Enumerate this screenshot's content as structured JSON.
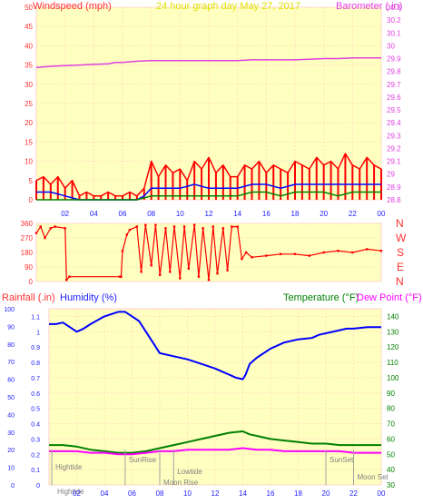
{
  "header": {
    "left_label": "Windspeed (mph)",
    "title": "24 hour graph day   May 27, 2017",
    "right_label": "Barometer (.in)"
  },
  "mid_right_labels": [
    "N",
    "W",
    "S",
    "E",
    "N"
  ],
  "bottom_header": {
    "rainfall_label": "Rainfall (.in)",
    "humidity_label": "Humidity (%)",
    "temperature_label": "Temperature (°F)",
    "dewpoint_label": "Dew Point (°F)"
  },
  "colors": {
    "plot_bg": "#ffffc0",
    "windspeed": "#ff0000",
    "windavg": "#0000ff",
    "windlow": "#008000",
    "barometer": "#e040e0",
    "humidity": "#0000ff",
    "temperature": "#008000",
    "dewpoint": "#ff00ff",
    "axis_red": "#ff3030",
    "axis_blue": "#2020ff",
    "axis_green": "#008000",
    "title": "#e0e000",
    "event": "#808080"
  },
  "chart_data": [
    {
      "type": "line",
      "name": "windspeed-barometer",
      "x_ticks": [
        "02",
        "04",
        "06",
        "08",
        "10",
        "12",
        "14",
        "16",
        "18",
        "20",
        "22",
        "00"
      ],
      "x_range": [
        0,
        24
      ],
      "y_left_ticks": [
        "0",
        "5",
        "10",
        "15",
        "20",
        "25",
        "30",
        "35",
        "40",
        "45",
        "50"
      ],
      "y_left_range": [
        0,
        50
      ],
      "y_right_ticks": [
        "28.8",
        "28.9",
        "29",
        "29.1",
        "29.2",
        "29.3",
        "29.4",
        "29.5",
        "29.6",
        "29.7",
        "29.8",
        "29.9",
        "30",
        "30.1",
        "30.2",
        "30.3"
      ],
      "y_right_range": [
        28.8,
        30.3
      ],
      "grid": true,
      "series": [
        {
          "name": "Windspeed",
          "axis": "left",
          "x": [
            0,
            0.5,
            1,
            1.5,
            2,
            2.5,
            3,
            3.5,
            4,
            4.5,
            5,
            5.5,
            6,
            6.5,
            7,
            7.5,
            8,
            8.5,
            9,
            9.5,
            10,
            10.5,
            11,
            11.5,
            12,
            12.5,
            13,
            13.5,
            14,
            14.5,
            15,
            15.5,
            16,
            16.5,
            17,
            17.5,
            18,
            18.5,
            19,
            19.5,
            20,
            20.5,
            21,
            21.5,
            22,
            22.5,
            23,
            23.5,
            24
          ],
          "y": [
            5,
            6,
            4,
            6,
            3,
            5,
            1,
            2,
            1,
            1,
            2,
            1,
            1,
            2,
            1,
            3,
            10,
            6,
            9,
            7,
            8,
            5,
            10,
            8,
            11,
            7,
            9,
            6,
            6,
            9,
            8,
            10,
            7,
            9,
            8,
            7,
            10,
            9,
            8,
            11,
            9,
            10,
            8,
            12,
            9,
            8,
            11,
            9,
            8
          ]
        },
        {
          "name": "Wind Average",
          "axis": "left",
          "x": [
            0,
            1,
            2,
            3,
            4,
            5,
            6,
            7,
            7.5,
            8,
            9,
            10,
            11,
            12,
            13,
            14,
            15,
            16,
            17,
            18,
            19,
            20,
            21,
            22,
            23,
            24
          ],
          "y": [
            2,
            2,
            1,
            0,
            0,
            0,
            0,
            0,
            1,
            3,
            3,
            3,
            4,
            3,
            3,
            3,
            4,
            4,
            3,
            4,
            4,
            4,
            4,
            4,
            4,
            4
          ]
        },
        {
          "name": "Wind Low",
          "axis": "left",
          "x": [
            0,
            1,
            2,
            3,
            4,
            5,
            6,
            7,
            8,
            9,
            10,
            11,
            12,
            13,
            14,
            15,
            16,
            17,
            18,
            19,
            20,
            21,
            22,
            23,
            24
          ],
          "y": [
            0,
            0,
            0,
            0,
            0,
            0,
            0,
            0,
            1,
            1,
            1,
            1,
            1,
            1,
            1,
            2,
            2,
            1,
            2,
            2,
            2,
            1,
            2,
            2,
            2
          ]
        },
        {
          "name": "Barometer",
          "axis": "right",
          "x": [
            0,
            1,
            2,
            3,
            4,
            5,
            5.5,
            6,
            7,
            8,
            9,
            10,
            11,
            12,
            13,
            14,
            15,
            16,
            17,
            18,
            19,
            20,
            21,
            22,
            23,
            24
          ],
          "y": [
            29.83,
            29.84,
            29.845,
            29.85,
            29.855,
            29.86,
            29.87,
            29.87,
            29.88,
            29.885,
            29.885,
            29.885,
            29.885,
            29.885,
            29.885,
            29.885,
            29.89,
            29.89,
            29.89,
            29.89,
            29.895,
            29.9,
            29.9,
            29.905,
            29.905,
            29.905
          ]
        }
      ]
    },
    {
      "type": "scatter",
      "name": "wind-direction",
      "x_range": [
        0,
        24
      ],
      "y_ticks": [
        "0",
        "90",
        "180",
        "270",
        "360"
      ],
      "y_range": [
        0,
        360
      ],
      "series": [
        {
          "name": "Wind Direction",
          "x": [
            0,
            0.3,
            0.6,
            1,
            1.3,
            2,
            2.1,
            2.3,
            5.8,
            5.9,
            6,
            6.3,
            6.5,
            7,
            7.3,
            7.6,
            8,
            8.3,
            8.6,
            9,
            9.3,
            9.6,
            10,
            10.3,
            10.6,
            11,
            11.3,
            11.6,
            12,
            12.3,
            12.6,
            13,
            13.3,
            13.6,
            14,
            14.3,
            14.6,
            15,
            16,
            17,
            18,
            19,
            20,
            21,
            22,
            23,
            24
          ],
          "y": [
            300,
            340,
            270,
            330,
            340,
            330,
            10,
            30,
            30,
            30,
            190,
            290,
            320,
            340,
            60,
            350,
            100,
            350,
            40,
            330,
            60,
            340,
            20,
            340,
            80,
            350,
            30,
            330,
            10,
            340,
            50,
            330,
            70,
            340,
            340,
            140,
            180,
            150,
            160,
            170,
            170,
            160,
            180,
            190,
            180,
            200,
            190
          ]
        }
      ]
    },
    {
      "type": "line",
      "name": "humidity-temperature",
      "x_ticks": [
        "02",
        "04",
        "06",
        "08",
        "10",
        "12",
        "14",
        "16",
        "18",
        "20",
        "22",
        "00"
      ],
      "x_range": [
        0,
        24
      ],
      "y_rain_ticks": [
        "0",
        "10",
        "20",
        "30",
        "40",
        "50",
        "60",
        "70",
        "80",
        "90",
        "100"
      ],
      "y_rain_range": [
        0,
        100
      ],
      "y_humidity_ticks": [
        "0",
        "0.1",
        "0.2",
        "0.3",
        "0.4",
        "0.5",
        "0.6",
        "0.7",
        "0.8",
        "0.9",
        "1",
        "1.1"
      ],
      "y_humidity_range": [
        0,
        1.15
      ],
      "y_temp_ticks": [
        "30",
        "40",
        "50",
        "60",
        "70",
        "80",
        "90",
        "100",
        "110",
        "120",
        "130",
        "140"
      ],
      "y_temp_range": [
        30,
        145
      ],
      "grid": true,
      "series": [
        {
          "name": "Humidity",
          "axis": "humidity",
          "x": [
            0,
            0.5,
            1,
            1.5,
            2,
            2.5,
            3,
            4,
            5,
            5.5,
            6,
            6.5,
            7,
            7.5,
            8,
            9,
            10,
            11,
            12,
            12.5,
            13,
            13.5,
            14,
            14.2,
            14.5,
            15,
            16,
            17,
            18,
            19,
            19.5,
            20,
            21,
            21.5,
            22,
            23,
            24
          ],
          "y": [
            1.05,
            1.05,
            1.06,
            1.03,
            1.0,
            1.02,
            1.05,
            1.1,
            1.13,
            1.13,
            1.1,
            1.07,
            1.0,
            0.93,
            0.86,
            0.84,
            0.82,
            0.79,
            0.76,
            0.74,
            0.72,
            0.7,
            0.69,
            0.72,
            0.79,
            0.83,
            0.89,
            0.93,
            0.95,
            0.96,
            0.98,
            0.99,
            1.01,
            1.02,
            1.02,
            1.03,
            1.03
          ]
        },
        {
          "name": "Temperature",
          "axis": "temp",
          "x": [
            0,
            1,
            2,
            3,
            4,
            5,
            6,
            7,
            8,
            9,
            10,
            11,
            12,
            13,
            14,
            14.5,
            15,
            16,
            17,
            18,
            19,
            20,
            21,
            22,
            23,
            24
          ],
          "y": [
            56,
            56,
            55,
            53,
            52,
            51,
            51,
            52,
            54,
            56,
            58,
            60,
            62,
            64,
            65,
            63,
            62,
            60,
            59,
            58,
            57,
            57,
            56,
            56,
            56,
            56
          ]
        },
        {
          "name": "Dew Point",
          "axis": "temp",
          "x": [
            0,
            1,
            2,
            3,
            4,
            5,
            6,
            7,
            8,
            9,
            10,
            11,
            12,
            13,
            14,
            15,
            16,
            17,
            18,
            19,
            20,
            21,
            22,
            23,
            24
          ],
          "y": [
            52,
            52,
            52,
            51,
            51,
            50,
            50,
            51,
            52,
            52,
            53,
            53,
            53,
            53,
            54,
            53,
            53,
            52,
            52,
            52,
            52,
            52,
            51,
            51,
            51
          ]
        }
      ],
      "annotations": [
        {
          "x": 0.2,
          "lower": "Hightide",
          "upper": "Hightide"
        },
        {
          "x": 5.5,
          "lower": "SunRise"
        },
        {
          "x": 9.0,
          "lower": "Lowtide"
        },
        {
          "x": 8.0,
          "lower": "Moon Rise"
        },
        {
          "x": 20.0,
          "lower": "SunSet"
        },
        {
          "x": 22.0,
          "lower": "Moon Set"
        }
      ]
    }
  ]
}
